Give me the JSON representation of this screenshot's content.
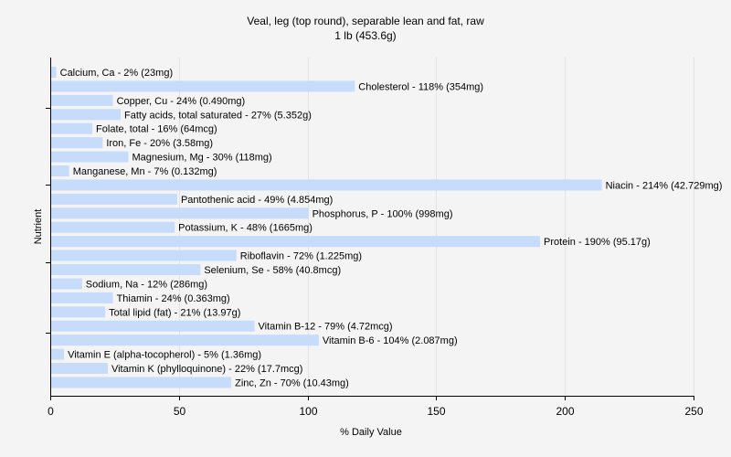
{
  "chart_data": {
    "type": "bar",
    "orientation": "horizontal",
    "title": "Veal, leg (top round), separable lean and fat, raw",
    "subtitle": "1 lb (453.6g)",
    "xlabel": "% Daily Value",
    "ylabel": "Nutrient",
    "xlim": [
      0,
      250
    ],
    "xticks": [
      0,
      50,
      100,
      150,
      200,
      250
    ],
    "grid": true,
    "bar_color": "#c6dcfa",
    "categories": [
      "Calcium, Ca",
      "Cholesterol",
      "Copper, Cu",
      "Fatty acids, total saturated",
      "Folate, total",
      "Iron, Fe",
      "Magnesium, Mg",
      "Manganese, Mn",
      "Niacin",
      "Pantothenic acid",
      "Phosphorus, P",
      "Potassium, K",
      "Protein",
      "Riboflavin",
      "Selenium, Se",
      "Sodium, Na",
      "Thiamin",
      "Total lipid (fat)",
      "Vitamin B-12",
      "Vitamin B-6",
      "Vitamin E (alpha-tocopherol)",
      "Vitamin K (phylloquinone)",
      "Zinc, Zn"
    ],
    "values": [
      2,
      118,
      24,
      27,
      16,
      20,
      30,
      7,
      214,
      49,
      100,
      48,
      190,
      72,
      58,
      12,
      24,
      21,
      79,
      104,
      5,
      22,
      70
    ],
    "labels": [
      "Calcium, Ca - 2% (23mg)",
      "Cholesterol - 118% (354mg)",
      "Copper, Cu - 24% (0.490mg)",
      "Fatty acids, total saturated - 27% (5.352g)",
      "Folate, total - 16% (64mcg)",
      "Iron, Fe - 20% (3.58mg)",
      "Magnesium, Mg - 30% (118mg)",
      "Manganese, Mn - 7% (0.132mg)",
      "Niacin - 214% (42.729mg)",
      "Pantothenic acid - 49% (4.854mg)",
      "Phosphorus, P - 100% (998mg)",
      "Potassium, K - 48% (1665mg)",
      "Protein - 190% (95.17g)",
      "Riboflavin - 72% (1.225mg)",
      "Selenium, Se - 58% (40.8mcg)",
      "Sodium, Na - 12% (286mg)",
      "Thiamin - 24% (0.363mg)",
      "Total lipid (fat) - 21% (13.97g)",
      "Vitamin B-12 - 79% (4.72mcg)",
      "Vitamin B-6 - 104% (2.087mg)",
      "Vitamin E (alpha-tocopherol) - 5% (1.36mg)",
      "Vitamin K (phylloquinone) - 22% (17.7mcg)",
      "Zinc, Zn - 70% (10.43mg)"
    ]
  }
}
